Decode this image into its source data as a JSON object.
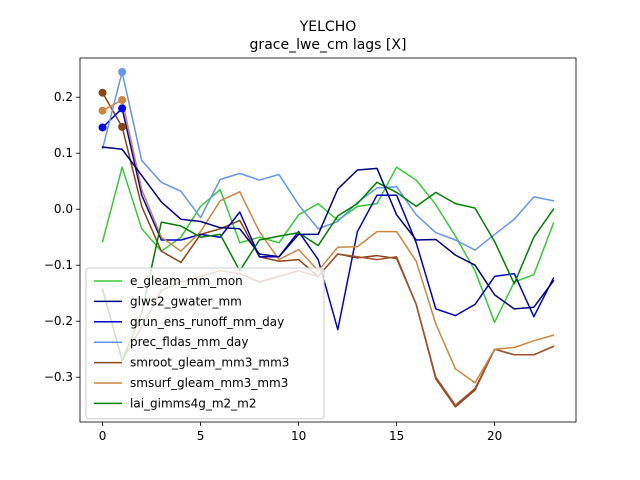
{
  "chart_data": {
    "type": "line",
    "title": "YELCHO",
    "subtitle": "grace_lwe_cm lags [X]",
    "xlabel": "",
    "ylabel": "",
    "xlim": [
      -1.15,
      24.15
    ],
    "ylim": [
      -0.38,
      0.27
    ],
    "xticks": [
      0,
      5,
      10,
      15,
      20
    ],
    "yticks": [
      -0.3,
      -0.2,
      -0.1,
      0.0,
      0.1,
      0.2
    ],
    "ytick_labels": [
      "−0.3",
      "−0.2",
      "−0.1",
      "0.0",
      "0.1",
      "0.2"
    ],
    "legend_position": "lower-left",
    "grid": false,
    "x": [
      0,
      1,
      2,
      3,
      4,
      5,
      6,
      7,
      8,
      9,
      10,
      11,
      12,
      13,
      14,
      15,
      16,
      17,
      18,
      19,
      20,
      21,
      22,
      23
    ],
    "series": [
      {
        "name": "e_gleam_mm_mon",
        "color": "#32cd32",
        "values": [
          -0.058,
          0.075,
          -0.035,
          -0.075,
          -0.05,
          0.005,
          0.035,
          -0.06,
          -0.05,
          -0.06,
          -0.01,
          0.01,
          -0.02,
          0.005,
          0.01,
          0.075,
          0.052,
          0.008,
          -0.048,
          -0.11,
          -0.202,
          -0.13,
          -0.117,
          -0.025
        ]
      },
      {
        "name": "glws2_gwater_mm",
        "color": "#8b4513",
        "values": [
          0.208,
          0.147,
          0.005,
          -0.075,
          -0.095,
          -0.045,
          -0.035,
          -0.02,
          -0.085,
          -0.093,
          -0.09,
          -0.12,
          -0.08,
          -0.087,
          -0.083,
          -0.088,
          -0.17,
          -0.303,
          -0.353,
          -0.323,
          -0.25,
          -0.26,
          -0.26,
          -0.245
        ]
      },
      {
        "name": "grun_ens_runoff_mm_day",
        "color": "#0000cd",
        "values": [
          0.146,
          0.18,
          0.025,
          -0.055,
          -0.055,
          -0.045,
          -0.05,
          -0.005,
          -0.085,
          -0.085,
          -0.04,
          -0.09,
          -0.215,
          -0.04,
          0.025,
          0.025,
          -0.06,
          -0.178,
          -0.19,
          -0.17,
          -0.12,
          -0.115,
          -0.192,
          -0.123
        ]
      },
      {
        "name": "prec_fldas_mm_day",
        "color": "#6495ed",
        "values": [
          0.108,
          0.245,
          0.087,
          0.048,
          0.032,
          -0.015,
          0.053,
          0.064,
          0.052,
          0.062,
          0.008,
          -0.035,
          -0.022,
          0.012,
          0.038,
          0.04,
          -0.01,
          -0.042,
          -0.055,
          -0.073,
          -0.045,
          -0.018,
          0.022,
          0.015
        ]
      },
      {
        "name": "smroot_gleam_mm3_mm3",
        "color": "#a0522d",
        "values": [
          -0.143,
          -0.27,
          -0.21,
          -0.145,
          -0.13,
          -0.12,
          -0.11,
          -0.115,
          -0.13,
          -0.12,
          -0.11,
          -0.12,
          -0.08,
          -0.085,
          -0.09,
          -0.085,
          -0.17,
          -0.3,
          -0.35,
          -0.32,
          -0.25,
          -0.26,
          -0.26,
          -0.245
        ]
      },
      {
        "name": "smsurf_gleam_mm3_mm3",
        "color": "#cd853f",
        "values": [
          0.176,
          0.195,
          0.035,
          -0.05,
          -0.075,
          -0.04,
          0.015,
          0.031,
          -0.04,
          -0.09,
          -0.072,
          -0.11,
          -0.068,
          -0.067,
          -0.04,
          -0.04,
          -0.093,
          -0.205,
          -0.285,
          -0.31,
          -0.25,
          -0.247,
          -0.235,
          -0.225
        ]
      },
      {
        "name": "lai_gimms4g_m2_m2",
        "color": "#008000",
        "values": [
          -0.143,
          -0.27,
          -0.185,
          -0.023,
          -0.03,
          -0.05,
          -0.045,
          -0.11,
          -0.055,
          -0.048,
          -0.042,
          -0.065,
          -0.012,
          0.01,
          0.048,
          0.03,
          0.005,
          0.03,
          0.01,
          0.002,
          -0.058,
          -0.133,
          -0.05,
          0.0
        ]
      },
      {
        "name": "glws2_gwater_mm_line",
        "color": "#000080",
        "values": [
          0.111,
          0.107,
          0.06,
          0.013,
          -0.018,
          -0.022,
          -0.033,
          -0.035,
          -0.08,
          -0.085,
          -0.045,
          -0.045,
          0.036,
          0.07,
          0.073,
          -0.01,
          -0.055,
          -0.054,
          -0.082,
          -0.1,
          -0.153,
          -0.178,
          -0.175,
          -0.128
        ]
      }
    ],
    "legend": [
      {
        "name": "e_gleam_mm_mon",
        "color": "#32cd32"
      },
      {
        "name": "glws2_gwater_mm",
        "color": "#000080"
      },
      {
        "name": "grun_ens_runoff_mm_day",
        "color": "#0000cd"
      },
      {
        "name": "prec_fldas_mm_day",
        "color": "#6495ed"
      },
      {
        "name": "smroot_gleam_mm3_mm3",
        "color": "#8b4513"
      },
      {
        "name": "smsurf_gleam_mm3_mm3",
        "color": "#cd853f"
      },
      {
        "name": "lai_gimms4g_m2_m2",
        "color": "#008000"
      }
    ],
    "markers": [
      {
        "x": 0,
        "y": 0.146,
        "color": "#0000ff"
      },
      {
        "x": 1,
        "y": 0.18,
        "color": "#0000ff"
      },
      {
        "x": 0,
        "y": 0.208,
        "color": "#8b4513"
      },
      {
        "x": 1,
        "y": 0.147,
        "color": "#8b4513"
      },
      {
        "x": 0,
        "y": 0.176,
        "color": "#cd853f"
      },
      {
        "x": 1,
        "y": 0.195,
        "color": "#cd853f"
      },
      {
        "x": 1,
        "y": 0.245,
        "color": "#6495ed"
      }
    ]
  }
}
